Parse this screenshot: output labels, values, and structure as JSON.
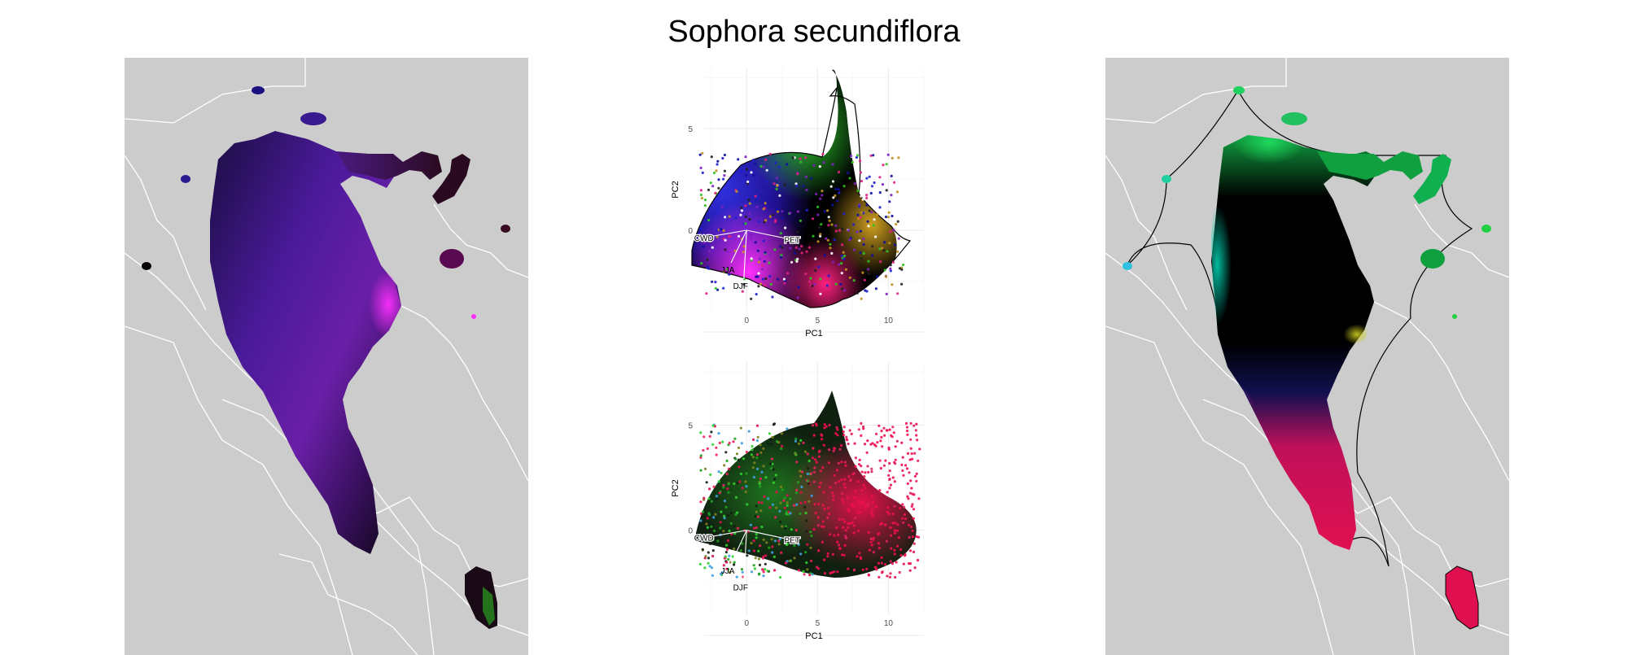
{
  "figure": {
    "title": "Sophora secundiflora"
  },
  "colors": {
    "background": "#ffffff",
    "land": "#cccccc",
    "borders": "#ffffff",
    "hull": "#000000"
  },
  "chart_data": [
    {
      "type": "scatter",
      "panel": "pca-top",
      "xlabel": "PC1",
      "ylabel": "PC2",
      "xlim": [
        -3,
        12.5
      ],
      "ylim": [
        -4,
        8
      ],
      "x_ticks": [
        "0",
        "5",
        "10"
      ],
      "y_ticks": [
        "0",
        "5"
      ],
      "grid": true,
      "loadings": [
        {
          "label": "CWD",
          "x": -2.9,
          "y": -0.35
        },
        {
          "label": "PET",
          "x": 3.1,
          "y": -0.45
        },
        {
          "label": "JJA",
          "x": -1.1,
          "y": -1.6
        },
        {
          "label": "DJF",
          "x": -0.2,
          "y": -2.4
        }
      ]
    },
    {
      "type": "scatter",
      "panel": "pca-bottom",
      "xlabel": "PC1",
      "ylabel": "PC2",
      "xlim": [
        -3,
        12.5
      ],
      "ylim": [
        -4,
        8
      ],
      "x_ticks": [
        "0",
        "5",
        "10"
      ],
      "y_ticks": [
        "0",
        "5"
      ],
      "grid": true,
      "loadings": [
        {
          "label": "CWD",
          "x": -2.9,
          "y": -0.35
        },
        {
          "label": "PET",
          "x": 3.1,
          "y": -0.45
        },
        {
          "label": "JJA",
          "x": -1.1,
          "y": -1.6
        },
        {
          "label": "DJF",
          "x": -0.2,
          "y": -2.4
        }
      ]
    }
  ]
}
